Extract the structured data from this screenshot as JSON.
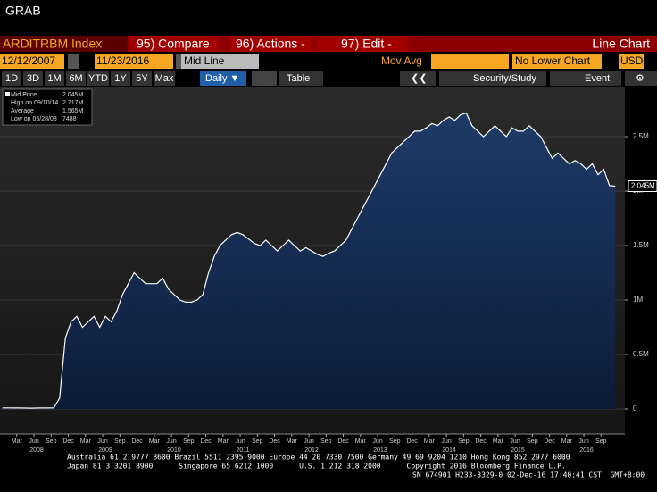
{
  "screen_title": "GRAB",
  "toolbar": {
    "security": "ARDITRBM Index",
    "compare": "95) Compare",
    "actions": "96) Actions -",
    "edit": "97) Edit -",
    "chart_type": "Line Chart"
  },
  "controls": {
    "start_date": "12/12/2007",
    "end_date": "11/23/2016",
    "mode": "Mid Line",
    "mov_avg": "Mov Avg",
    "lower_chart": "No Lower Chart",
    "currency": "USD"
  },
  "periods": [
    "1D",
    "3D",
    "1M",
    "6M",
    "YTD",
    "1Y",
    "5Y",
    "Max"
  ],
  "frequency": "Daily ▼",
  "table": "Table",
  "security_study": "Security/Study",
  "event": "Event",
  "legend_stats": [
    {
      "label": "Mid Price",
      "value": "2.045M"
    },
    {
      "label": "High on 09/10/14",
      "value": "2.717M"
    },
    {
      "label": "Average",
      "value": "1.565M"
    },
    {
      "label": "Low on 05/28/08",
      "value": "7488"
    }
  ],
  "last_value_label": "2.045M",
  "chart_data": {
    "type": "line",
    "grid": true,
    "x": [
      "2007-12",
      "2008-01",
      "2008-02",
      "2008-03",
      "2008-04",
      "2008-05",
      "2008-06",
      "2008-07",
      "2008-08",
      "2008-09",
      "2008-10",
      "2008-11",
      "2008-12",
      "2009-01",
      "2009-02",
      "2009-03",
      "2009-04",
      "2009-05",
      "2009-06",
      "2009-07",
      "2009-08",
      "2009-09",
      "2009-10",
      "2009-11",
      "2009-12",
      "2010-01",
      "2010-02",
      "2010-03",
      "2010-04",
      "2010-05",
      "2010-06",
      "2010-07",
      "2010-08",
      "2010-09",
      "2010-10",
      "2010-11",
      "2010-12",
      "2011-01",
      "2011-02",
      "2011-03",
      "2011-04",
      "2011-05",
      "2011-06",
      "2011-07",
      "2011-08",
      "2011-09",
      "2011-10",
      "2011-11",
      "2011-12",
      "2012-01",
      "2012-02",
      "2012-03",
      "2012-04",
      "2012-05",
      "2012-06",
      "2012-07",
      "2012-08",
      "2012-09",
      "2012-10",
      "2012-11",
      "2012-12",
      "2013-01",
      "2013-02",
      "2013-03",
      "2013-04",
      "2013-05",
      "2013-06",
      "2013-07",
      "2013-08",
      "2013-09",
      "2013-10",
      "2013-11",
      "2013-12",
      "2014-01",
      "2014-02",
      "2014-03",
      "2014-04",
      "2014-05",
      "2014-06",
      "2014-07",
      "2014-08",
      "2014-09",
      "2014-10",
      "2014-11",
      "2014-12",
      "2015-01",
      "2015-02",
      "2015-03",
      "2015-04",
      "2015-05",
      "2015-06",
      "2015-07",
      "2015-08",
      "2015-09",
      "2015-10",
      "2015-11",
      "2015-12",
      "2016-01",
      "2016-02",
      "2016-03",
      "2016-04",
      "2016-05",
      "2016-06",
      "2016-07",
      "2016-08",
      "2016-09",
      "2016-10",
      "2016-11"
    ],
    "series": [
      {
        "name": "Mid Price",
        "color": "#ffffff",
        "values": [
          10000,
          10000,
          9000,
          9000,
          8500,
          7488,
          8000,
          9000,
          9000,
          10000,
          100000,
          650000,
          800000,
          850000,
          750000,
          800000,
          850000,
          750000,
          850000,
          800000,
          900000,
          1050000,
          1150000,
          1250000,
          1200000,
          1150000,
          1150000,
          1150000,
          1200000,
          1100000,
          1050000,
          1000000,
          980000,
          980000,
          1000000,
          1050000,
          1250000,
          1400000,
          1500000,
          1550000,
          1600000,
          1620000,
          1600000,
          1560000,
          1520000,
          1500000,
          1550000,
          1500000,
          1450000,
          1500000,
          1550000,
          1500000,
          1450000,
          1480000,
          1450000,
          1420000,
          1400000,
          1430000,
          1450000,
          1500000,
          1550000,
          1650000,
          1750000,
          1850000,
          1950000,
          2050000,
          2150000,
          2250000,
          2350000,
          2400000,
          2450000,
          2500000,
          2550000,
          2550000,
          2580000,
          2620000,
          2600000,
          2650000,
          2680000,
          2650000,
          2700000,
          2717000,
          2600000,
          2550000,
          2500000,
          2550000,
          2600000,
          2550000,
          2500000,
          2580000,
          2550000,
          2550000,
          2600000,
          2550000,
          2500000,
          2400000,
          2300000,
          2350000,
          2300000,
          2250000,
          2280000,
          2250000,
          2200000,
          2250000,
          2150000,
          2200000,
          2050000,
          2045000
        ]
      }
    ],
    "ylim": [
      -229500,
      2959000
    ],
    "yticks": [
      {
        "value": 0,
        "label": "0"
      },
      {
        "value": 500000,
        "label": "0.5M"
      },
      {
        "value": 1000000,
        "label": "1M"
      },
      {
        "value": 1500000,
        "label": "1.5M"
      },
      {
        "value": 2000000,
        "label": "2M"
      },
      {
        "value": 2500000,
        "label": "2.5M"
      }
    ],
    "xticks": [
      {
        "value": "2008-03",
        "label": "Mar"
      },
      {
        "value": "2008-06",
        "label": "Jun"
      },
      {
        "value": "2008-09",
        "label": "Sep"
      },
      {
        "value": "2008-12",
        "label": "Dec"
      },
      {
        "value": "2009-03",
        "label": "Mar"
      },
      {
        "value": "2009-06",
        "label": "Jun"
      },
      {
        "value": "2009-09",
        "label": "Sep"
      },
      {
        "value": "2009-12",
        "label": "Dec"
      },
      {
        "value": "2010-03",
        "label": "Mar"
      },
      {
        "value": "2010-06",
        "label": "Jun"
      },
      {
        "value": "2010-09",
        "label": "Sep"
      },
      {
        "value": "2010-12",
        "label": "Dec"
      },
      {
        "value": "2011-03",
        "label": "Mar"
      },
      {
        "value": "2011-06",
        "label": "Jun"
      },
      {
        "value": "2011-09",
        "label": "Sep"
      },
      {
        "value": "2011-12",
        "label": "Dec"
      },
      {
        "value": "2012-03",
        "label": "Mar"
      },
      {
        "value": "2012-06",
        "label": "Jun"
      },
      {
        "value": "2012-09",
        "label": "Sep"
      },
      {
        "value": "2012-12",
        "label": "Dec"
      },
      {
        "value": "2013-03",
        "label": "Mar"
      },
      {
        "value": "2013-06",
        "label": "Jun"
      },
      {
        "value": "2013-09",
        "label": "Sep"
      },
      {
        "value": "2013-12",
        "label": "Dec"
      },
      {
        "value": "2014-03",
        "label": "Mar"
      },
      {
        "value": "2014-06",
        "label": "Jun"
      },
      {
        "value": "2014-09",
        "label": "Sep"
      },
      {
        "value": "2014-12",
        "label": "Dec"
      },
      {
        "value": "2015-03",
        "label": "Mar"
      },
      {
        "value": "2015-06",
        "label": "Jun"
      },
      {
        "value": "2015-09",
        "label": "Sep"
      },
      {
        "value": "2015-12",
        "label": "Dec"
      },
      {
        "value": "2016-03",
        "label": "Mar"
      },
      {
        "value": "2016-06",
        "label": "Jun"
      },
      {
        "value": "2016-09",
        "label": "Sep"
      }
    ],
    "year_ticks": [
      2008,
      2009,
      2010,
      2011,
      2012,
      2013,
      2014,
      2015,
      2016
    ]
  },
  "footer": [
    "Australia 61 2 9777 8600 Brazil 5511 2395 9000 Europe 44 20 7330 7500 Germany 49 69 9204 1210 Hong Kong 852 2977 6000",
    "Japan 81 3 3201 8900      Singapore 65 6212 1000      U.S. 1 212 318 2000      Copyright 2016 Bloomberg Finance L.P.",
    "SN 674901 H233-3329-0 02-Dec-16 17:40:41 CST  GMT+8:00"
  ]
}
